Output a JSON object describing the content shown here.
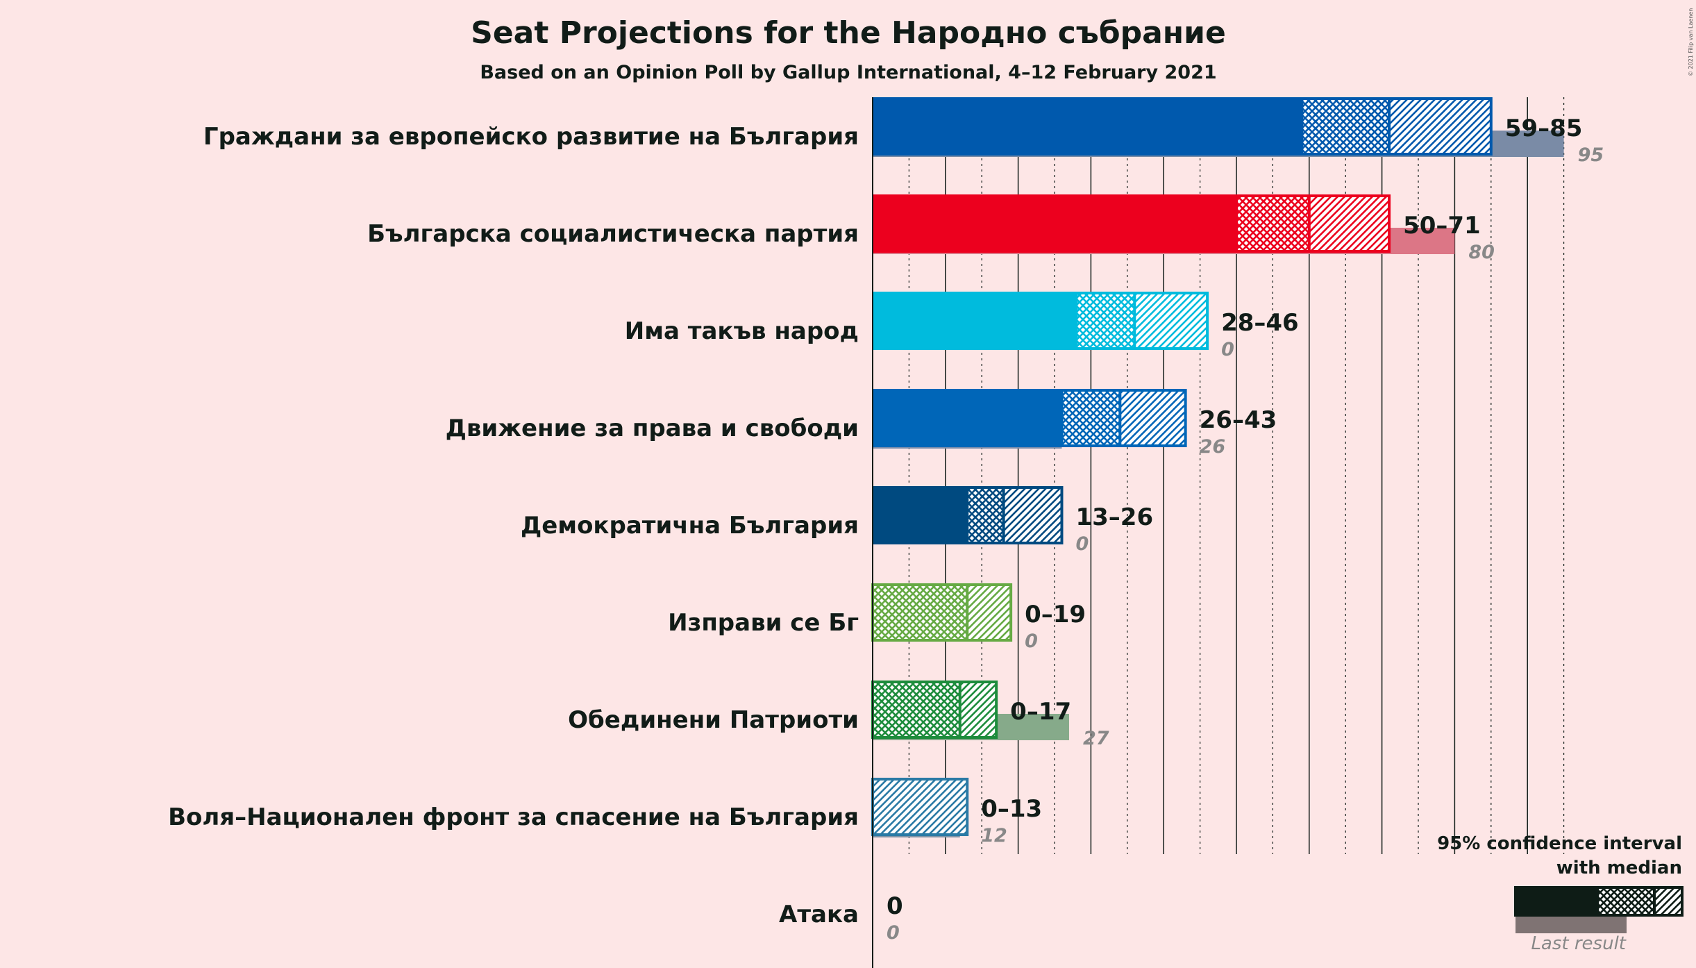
{
  "chart_data": {
    "type": "bar",
    "title": "Seat Projections for the Народно събрание",
    "subtitle": "Based on an Opinion Poll by Gallup International, 4–12 February 2021",
    "copyright": "© 2021 Filip van Laenen",
    "legend": {
      "line1": "95% confidence interval",
      "line2": "with median",
      "last_result": "Last result",
      "color": "#0e1c16",
      "placement": "bottom-right"
    },
    "xlim": [
      0,
      100
    ],
    "grid": true,
    "parties": [
      {
        "name": "Граждани за европейско развитие на България",
        "low": 59,
        "median": 71,
        "high": 85,
        "last": 95,
        "range_label": "59–85",
        "last_label": "95",
        "color": "#0059ad",
        "last_color": "#7a8ba6"
      },
      {
        "name": "Българска социалистическа партия",
        "low": 50,
        "median": 60,
        "high": 71,
        "last": 80,
        "range_label": "50–71",
        "last_label": "80",
        "color": "#ec001e",
        "last_color": "#dc7686"
      },
      {
        "name": "Има такъв народ",
        "low": 28,
        "median": 36,
        "high": 46,
        "last": 0,
        "range_label": "28–46",
        "last_label": "0",
        "color": "#00bbdd",
        "last_color": "#7a9faf"
      },
      {
        "name": "Движение за права и свободи",
        "low": 26,
        "median": 34,
        "high": 43,
        "last": 26,
        "range_label": "26–43",
        "last_label": "26",
        "color": "#0066b8",
        "last_color": "#7d8eac"
      },
      {
        "name": "Демократична България",
        "low": 13,
        "median": 18,
        "high": 26,
        "last": 0,
        "range_label": "13–26",
        "last_label": "0",
        "color": "#004a80",
        "last_color": "#7a8ba6"
      },
      {
        "name": "Изправи се Бг",
        "low": 0,
        "median": 13,
        "high": 19,
        "last": 0,
        "range_label": "0–19",
        "last_label": "0",
        "color": "#66aa44",
        "last_color": "#99bb88"
      },
      {
        "name": "Обединени Патриоти",
        "low": 0,
        "median": 12,
        "high": 17,
        "last": 27,
        "range_label": "0–17",
        "last_label": "27",
        "color": "#1d8c3c",
        "last_color": "#86aa8a"
      },
      {
        "name": "Воля–Национален фронт за спасение на България",
        "low": 0,
        "median": 0,
        "high": 13,
        "last": 12,
        "range_label": "0–13",
        "last_label": "12",
        "color": "#2a7aa5",
        "last_color": "#7f93a6"
      },
      {
        "name": "Атака",
        "low": 0,
        "median": 0,
        "high": 0,
        "last": 0,
        "range_label": "0",
        "last_label": "0",
        "color": "#111c18",
        "last_color": "#888888"
      }
    ]
  }
}
